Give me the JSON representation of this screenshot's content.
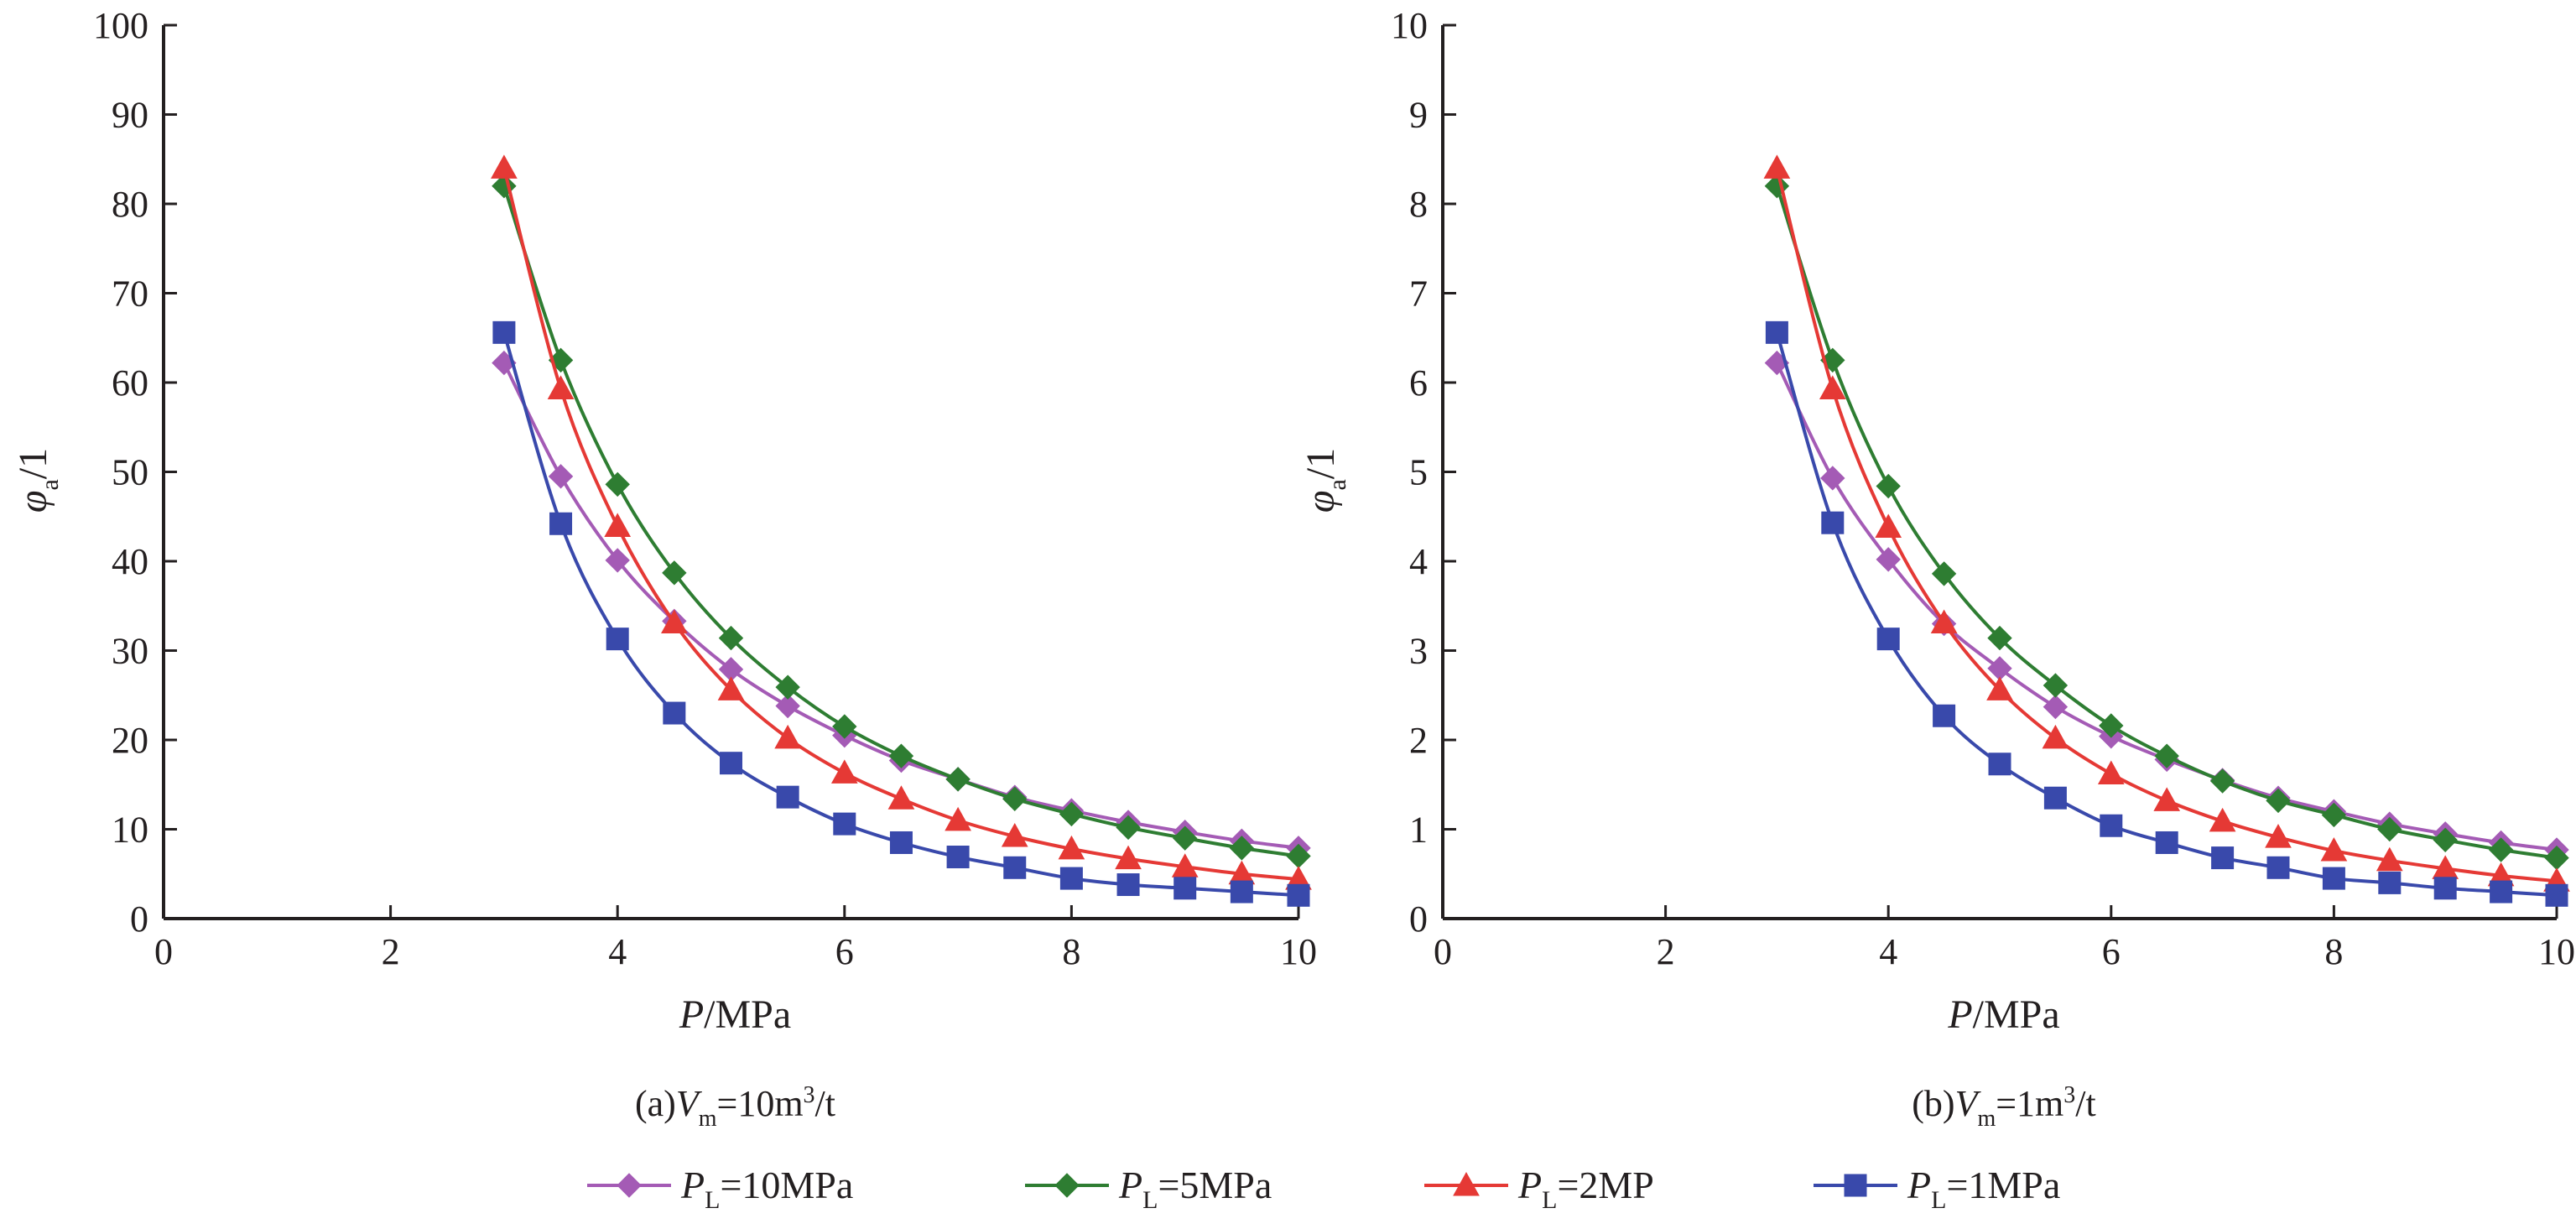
{
  "legend_entries": [
    {
      "sym": "P",
      "sub": "L",
      "rest": "=10MPa",
      "color": "#a45bb5",
      "marker": "diamond"
    },
    {
      "sym": "P",
      "sub": "L",
      "rest": "=5MPa",
      "color": "#2e7d32",
      "marker": "diamond"
    },
    {
      "sym": "P",
      "sub": "L",
      "rest": "=2MP",
      "color": "#e53935",
      "marker": "triangle"
    },
    {
      "sym": "P",
      "sub": "L",
      "rest": "=1MPa",
      "color": "#3949ab",
      "marker": "square"
    }
  ],
  "chart_data": [
    {
      "type": "line",
      "panel": "a",
      "caption": {
        "prefix": "(a)",
        "sym": "V",
        "sub": "m",
        "middle": "=10m",
        "sup": "3",
        "suffix": "/t"
      },
      "xlabel": {
        "sym": "P",
        "rest": "/MPa"
      },
      "ylabel": {
        "sym": "φ",
        "sub": "a",
        "rest": "/1"
      },
      "xlim": [
        0,
        10
      ],
      "ylim": [
        0,
        100
      ],
      "xticks": [
        0,
        2,
        4,
        6,
        8,
        10
      ],
      "yticks": [
        0,
        10,
        20,
        30,
        40,
        50,
        60,
        70,
        80,
        90,
        100
      ],
      "grid": false,
      "legend_position": "bottom",
      "x": [
        3,
        3.5,
        4,
        4.5,
        5,
        5.5,
        6,
        6.5,
        7,
        7.5,
        8,
        8.5,
        9,
        9.5,
        10
      ],
      "series": [
        {
          "name": "PL=10MPa",
          "values": [
            62.2,
            49.5,
            40.1,
            33.3,
            27.9,
            23.8,
            20.5,
            17.7,
            15.6,
            13.6,
            12.1,
            10.8,
            9.7,
            8.7,
            7.9
          ]
        },
        {
          "name": "PL=5MPa",
          "values": [
            82.0,
            62.5,
            48.6,
            38.7,
            31.4,
            25.9,
            21.5,
            18.2,
            15.6,
            13.4,
            11.7,
            10.2,
            9.0,
            7.9,
            7.0
          ]
        },
        {
          "name": "PL=2MP",
          "values": [
            84.0,
            59.3,
            43.9,
            33.1,
            25.6,
            20.2,
            16.3,
            13.4,
            11.0,
            9.2,
            7.8,
            6.7,
            5.8,
            5.0,
            4.4
          ]
        },
        {
          "name": "PL=1MPa",
          "values": [
            65.6,
            44.2,
            31.3,
            23.0,
            17.4,
            13.6,
            10.6,
            8.5,
            6.9,
            5.7,
            4.5,
            3.8,
            3.4,
            3.0,
            2.6
          ]
        }
      ]
    },
    {
      "type": "line",
      "panel": "b",
      "caption": {
        "prefix": "(b)",
        "sym": "V",
        "sub": "m",
        "middle": "=1m",
        "sup": "3",
        "suffix": "/t"
      },
      "xlabel": {
        "sym": "P",
        "rest": "/MPa"
      },
      "ylabel": {
        "sym": "φ",
        "sub": "a",
        "rest": "/1"
      },
      "xlim": [
        0,
        10
      ],
      "ylim": [
        0,
        10
      ],
      "xticks": [
        0,
        2,
        4,
        6,
        8,
        10
      ],
      "yticks": [
        0,
        1,
        2,
        3,
        4,
        5,
        6,
        7,
        8,
        9,
        10
      ],
      "grid": false,
      "legend_position": "bottom",
      "x": [
        3,
        3.5,
        4,
        4.5,
        5,
        5.5,
        6,
        6.5,
        7,
        7.5,
        8,
        8.5,
        9,
        9.5,
        10
      ],
      "series": [
        {
          "name": "PL=10MPa",
          "values": [
            6.22,
            4.93,
            4.02,
            3.3,
            2.8,
            2.37,
            2.04,
            1.78,
            1.55,
            1.35,
            1.2,
            1.06,
            0.95,
            0.85,
            0.77
          ]
        },
        {
          "name": "PL=5MPa",
          "values": [
            8.2,
            6.25,
            4.84,
            3.86,
            3.14,
            2.61,
            2.16,
            1.82,
            1.54,
            1.32,
            1.16,
            1.0,
            0.88,
            0.77,
            0.68
          ]
        },
        {
          "name": "PL=2MP",
          "values": [
            8.4,
            5.93,
            4.38,
            3.31,
            2.56,
            2.02,
            1.62,
            1.32,
            1.09,
            0.91,
            0.76,
            0.65,
            0.56,
            0.48,
            0.42
          ]
        },
        {
          "name": "PL=1MPa",
          "values": [
            6.56,
            4.43,
            3.13,
            2.27,
            1.73,
            1.35,
            1.04,
            0.85,
            0.68,
            0.57,
            0.45,
            0.4,
            0.34,
            0.3,
            0.26
          ]
        }
      ]
    }
  ]
}
